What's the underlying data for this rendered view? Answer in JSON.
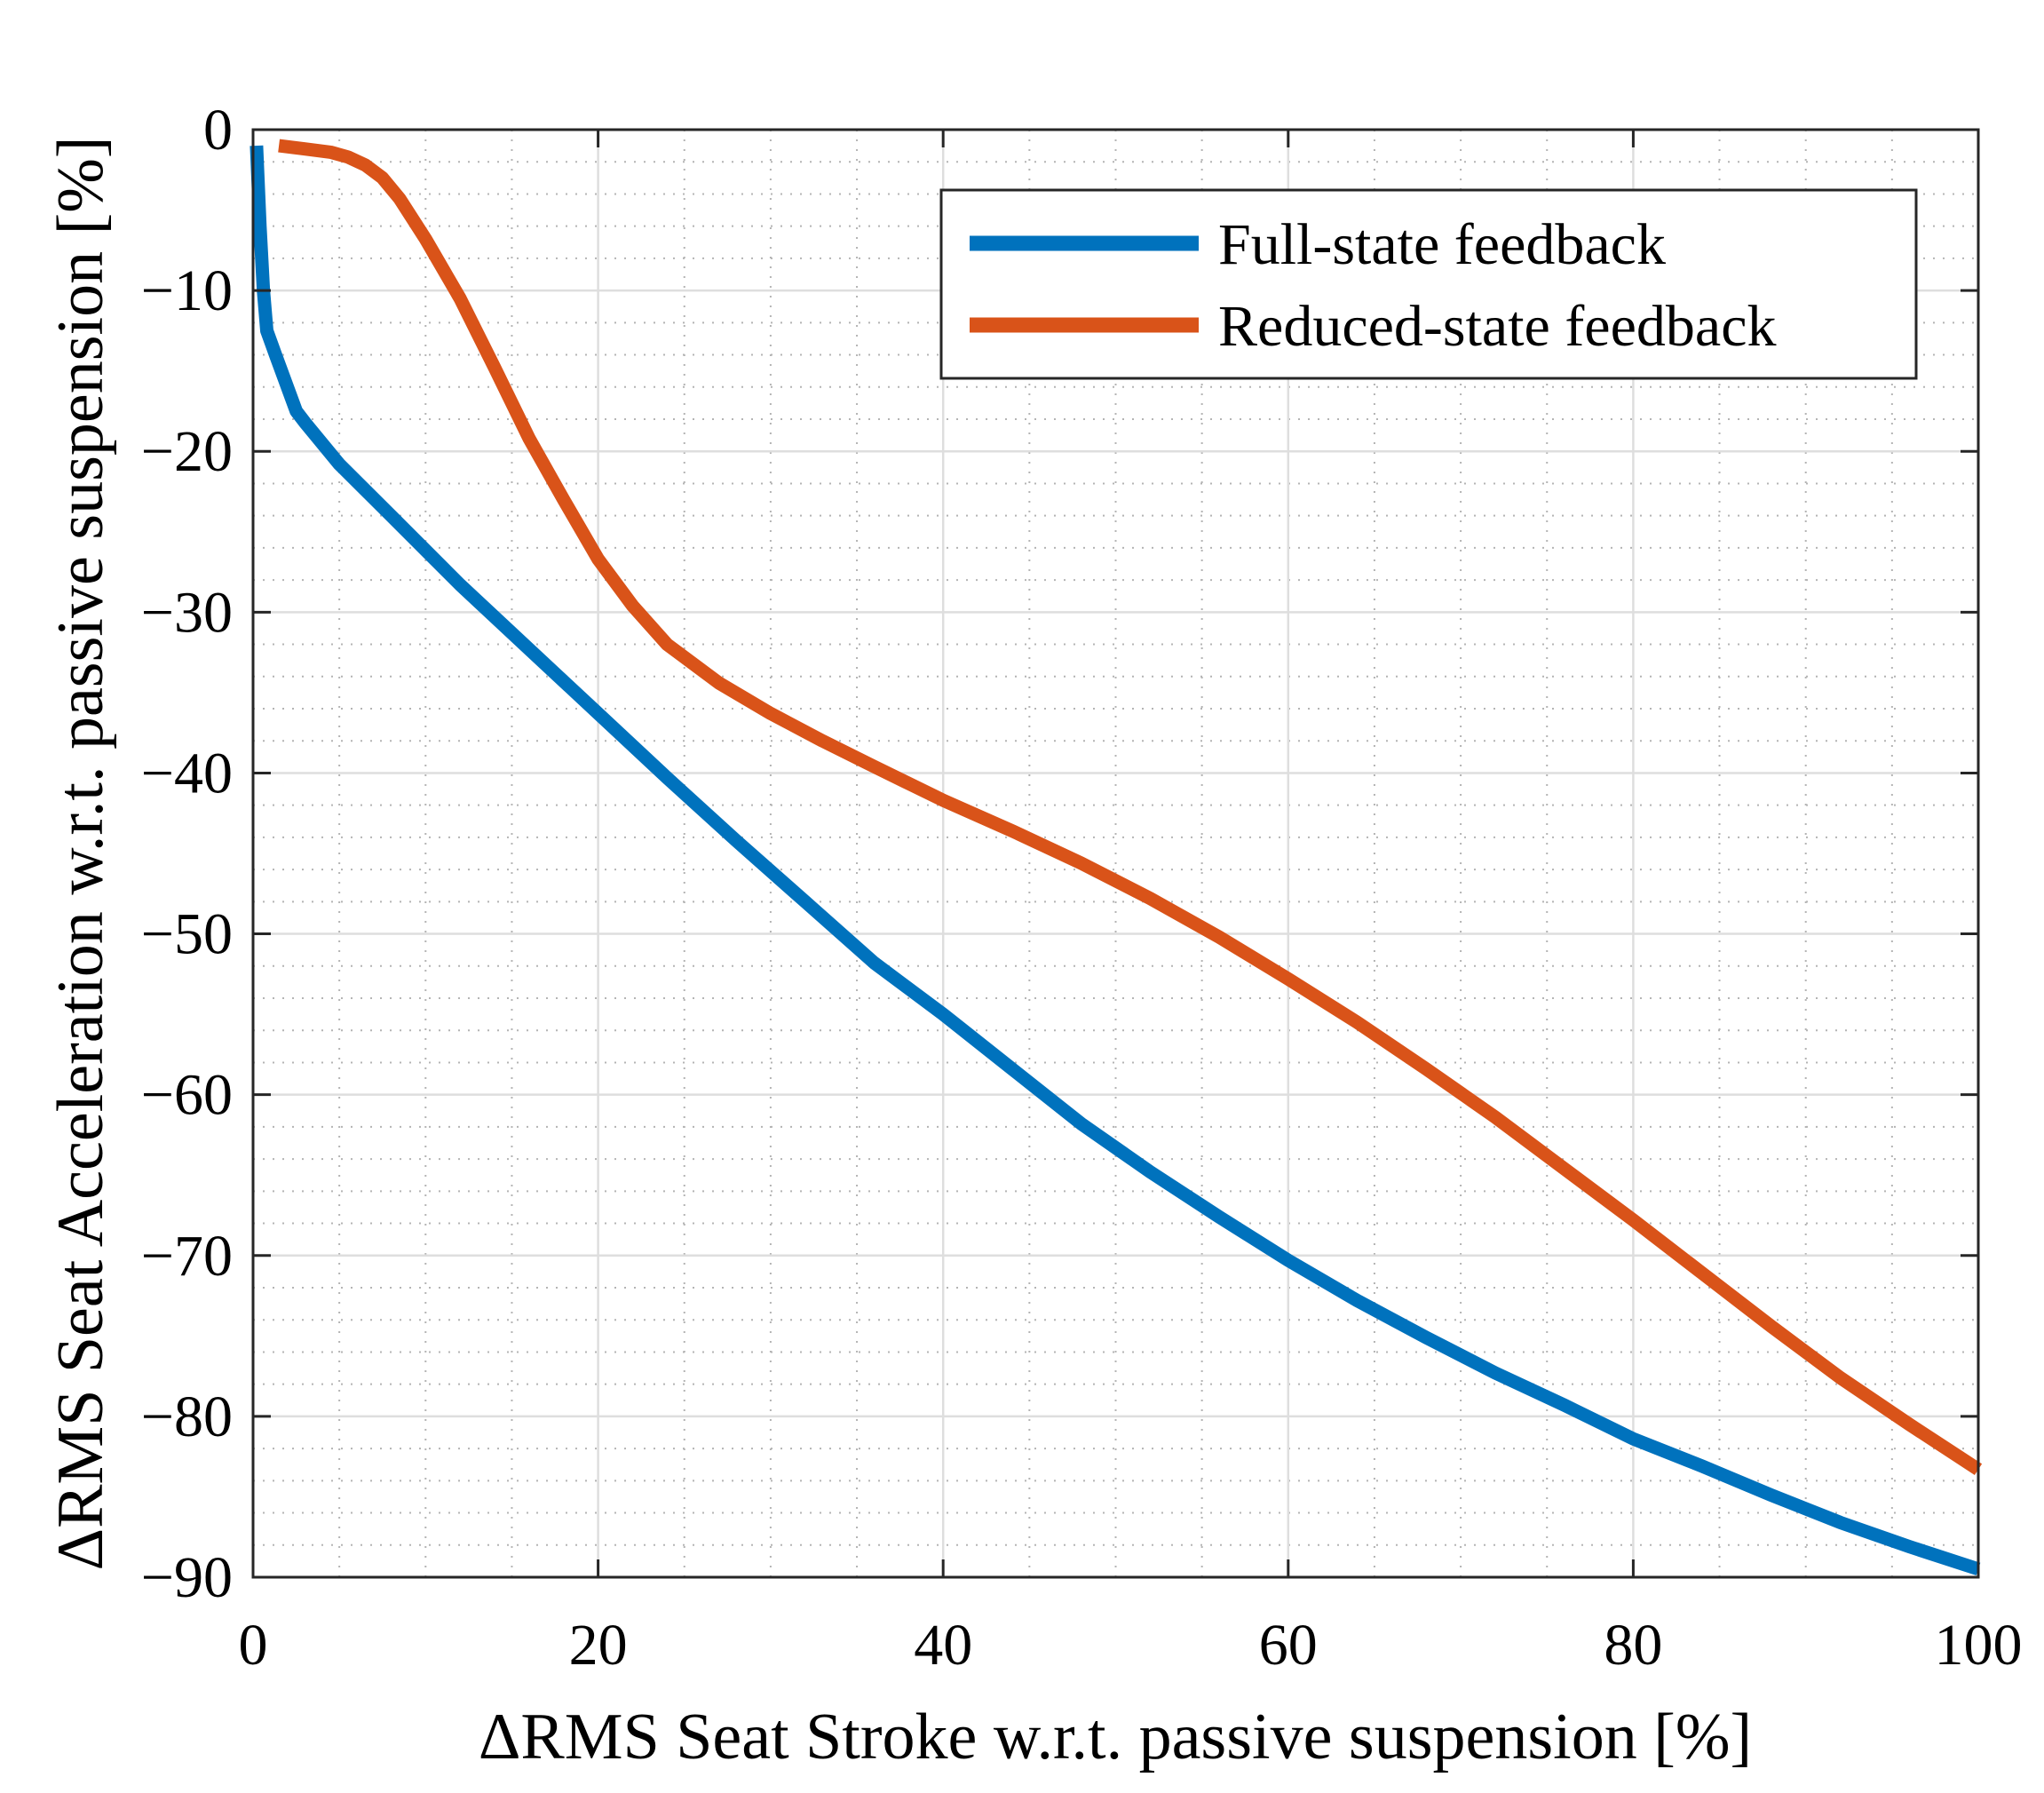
{
  "chart_data": {
    "type": "line",
    "title": "",
    "xlabel": "ΔRMS Seat Stroke w.r.t. passive suspension [%]",
    "ylabel": "ΔRMS Seat Acceleration w.r.t. passive suspension [%]",
    "xlim": [
      0,
      100
    ],
    "ylim": [
      -90,
      0
    ],
    "xticks": [
      0,
      20,
      40,
      60,
      80,
      100
    ],
    "xtick_labels": [
      "0",
      "20",
      "40",
      "60",
      "80",
      "100"
    ],
    "yticks": [
      0,
      -10,
      -20,
      -30,
      -40,
      -50,
      -60,
      -70,
      -80,
      -90
    ],
    "ytick_labels": [
      "0",
      "−10",
      "−20",
      "−30",
      "−40",
      "−50",
      "−60",
      "−70",
      "−80",
      "−90"
    ],
    "grid": true,
    "minor_grid": true,
    "legend_position": "top-right",
    "series": [
      {
        "name": "Full-state feedback",
        "color": "#0072BD",
        "points": [
          [
            0.2,
            -1
          ],
          [
            0.4,
            -6
          ],
          [
            0.6,
            -10
          ],
          [
            0.8,
            -12.5
          ],
          [
            1.3,
            -14
          ],
          [
            2.5,
            -17.5
          ],
          [
            3,
            -18.2
          ],
          [
            5,
            -20.8
          ],
          [
            8,
            -24
          ],
          [
            12,
            -28.3
          ],
          [
            16,
            -32.3
          ],
          [
            20,
            -36.3
          ],
          [
            24,
            -40.3
          ],
          [
            28,
            -44.2
          ],
          [
            32,
            -48
          ],
          [
            36,
            -51.8
          ],
          [
            40,
            -55
          ],
          [
            44,
            -58.4
          ],
          [
            48,
            -61.8
          ],
          [
            52,
            -64.8
          ],
          [
            56,
            -67.6
          ],
          [
            60,
            -70.3
          ],
          [
            64,
            -72.8
          ],
          [
            68,
            -75.1
          ],
          [
            72,
            -77.3
          ],
          [
            76,
            -79.3
          ],
          [
            80,
            -81.4
          ],
          [
            84,
            -83.1
          ],
          [
            88,
            -84.9
          ],
          [
            92,
            -86.6
          ],
          [
            96,
            -88.1
          ],
          [
            100,
            -89.5
          ]
        ]
      },
      {
        "name": "Reduced-state feedback",
        "color": "#D95319",
        "points": [
          [
            1.5,
            -1
          ],
          [
            3,
            -1.2
          ],
          [
            4.5,
            -1.4
          ],
          [
            5.5,
            -1.7
          ],
          [
            6.5,
            -2.2
          ],
          [
            7.5,
            -3
          ],
          [
            8.5,
            -4.3
          ],
          [
            10,
            -6.8
          ],
          [
            12,
            -10.5
          ],
          [
            14,
            -14.8
          ],
          [
            16,
            -19.2
          ],
          [
            18,
            -23
          ],
          [
            20,
            -26.7
          ],
          [
            22,
            -29.6
          ],
          [
            24,
            -32
          ],
          [
            27,
            -34.4
          ],
          [
            30,
            -36.3
          ],
          [
            33,
            -38
          ],
          [
            36,
            -39.6
          ],
          [
            40,
            -41.7
          ],
          [
            44,
            -43.6
          ],
          [
            48,
            -45.6
          ],
          [
            52,
            -47.8
          ],
          [
            56,
            -50.2
          ],
          [
            60,
            -52.8
          ],
          [
            64,
            -55.5
          ],
          [
            68,
            -58.4
          ],
          [
            72,
            -61.4
          ],
          [
            76,
            -64.6
          ],
          [
            80,
            -67.8
          ],
          [
            84,
            -71.1
          ],
          [
            88,
            -74.4
          ],
          [
            92,
            -77.6
          ],
          [
            96,
            -80.5
          ],
          [
            100,
            -83.3
          ]
        ]
      }
    ]
  }
}
